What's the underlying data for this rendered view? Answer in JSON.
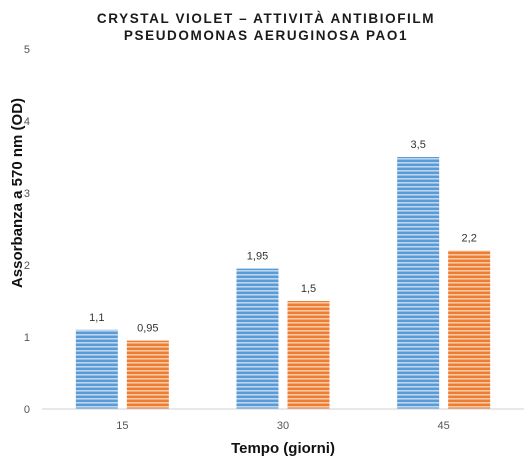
{
  "chart_data": {
    "type": "bar",
    "title": "CRYSTAL VIOLET – ATTIVITÀ ANTIBIOFILM",
    "subtitle": "PSEUDOMONAS AERUGINOSA PAO1",
    "xlabel": "Tempo (giorni)",
    "ylabel": "Assorbanza a 570 nm (OD)",
    "categories": [
      "15",
      "30",
      "45"
    ],
    "ylim": [
      0,
      5
    ],
    "yticks": [
      "0",
      "1",
      "2",
      "3",
      "4",
      "5"
    ],
    "grid": false,
    "legend": "none",
    "series": [
      {
        "values": [
          1.1,
          1.95,
          3.5
        ],
        "labels": [
          "1,1",
          "1,95",
          "3,5"
        ],
        "color": "#5b9bd5"
      },
      {
        "values": [
          0.95,
          1.5,
          2.2
        ],
        "labels": [
          "0,95",
          "1,5",
          "2,2"
        ],
        "color": "#ed7d31"
      }
    ]
  }
}
